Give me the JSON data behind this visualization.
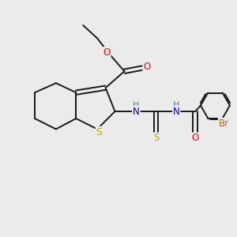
{
  "background_color": "#ebebeb",
  "bond_color": "#1a1a1a",
  "atom_colors": {
    "S": "#c8a000",
    "O": "#ff0000",
    "N": "#0000cd",
    "H": "#2e8b8b",
    "Br": "#b8650a",
    "C": "#1a1a1a"
  },
  "figsize": [
    3.0,
    3.0
  ],
  "dpi": 100,
  "lw": 1.4,
  "fontsize": 8.5
}
